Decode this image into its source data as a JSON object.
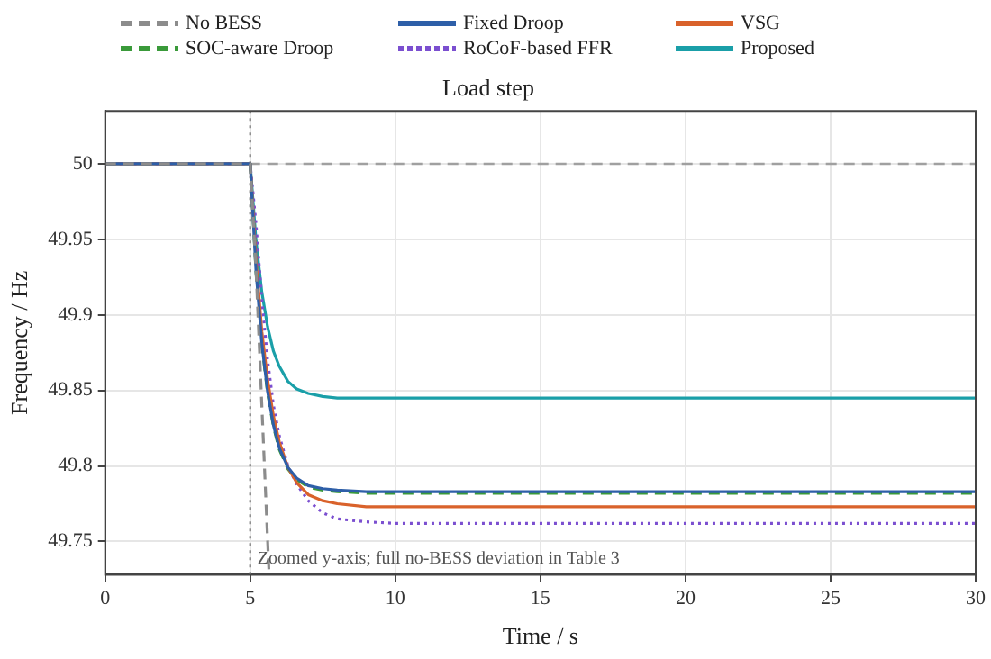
{
  "chart_data": {
    "type": "line",
    "title": "Load step",
    "xlabel": "Time / s",
    "ylabel": "Frequency / Hz",
    "xlim": [
      0,
      30
    ],
    "xticks": [
      0,
      5,
      10,
      15,
      20,
      25,
      30
    ],
    "ylim": [
      49.728,
      50.035
    ],
    "yticks": [
      49.75,
      49.8,
      49.85,
      49.9,
      49.95,
      50
    ],
    "grid": true,
    "legend": "top",
    "marker": "none",
    "ref_lines": [
      {
        "axis": "y",
        "value": 50,
        "color": "#a0a0a0",
        "line_style": "dashed"
      },
      {
        "axis": "x",
        "value": 5,
        "color": "#8c8c8c",
        "line_style": "dotted"
      }
    ],
    "annotations": [
      "Zoomed y-axis; full no-BESS deviation in Table 3"
    ],
    "series": [
      {
        "name": "No BESS",
        "color": "#8c8c8c",
        "line_style": "dashed",
        "x": [
          0,
          5,
          5.2,
          5.4,
          5.65
        ],
        "values": [
          50,
          50,
          49.93,
          49.84,
          49.728
        ]
      },
      {
        "name": "Fixed Droop",
        "color": "#2e5fa8",
        "line_style": "solid",
        "x": [
          0,
          5,
          5.2,
          5.4,
          5.6,
          5.8,
          6,
          6.3,
          6.6,
          7,
          7.5,
          8,
          9,
          10,
          15,
          20,
          30
        ],
        "values": [
          50,
          50,
          49.929,
          49.881,
          49.849,
          49.827,
          49.812,
          49.799,
          49.792,
          49.787,
          49.785,
          49.784,
          49.783,
          49.783,
          49.783,
          49.783,
          49.783
        ]
      },
      {
        "name": "VSG",
        "color": "#d9622b",
        "line_style": "solid",
        "x": [
          0,
          5,
          5.2,
          5.4,
          5.6,
          5.8,
          6,
          6.3,
          6.6,
          7,
          7.5,
          8,
          9,
          10,
          15,
          20,
          30
        ],
        "values": [
          50,
          50,
          49.936,
          49.889,
          49.857,
          49.833,
          49.816,
          49.799,
          49.789,
          49.781,
          49.777,
          49.775,
          49.773,
          49.773,
          49.773,
          49.773,
          49.773
        ]
      },
      {
        "name": "SOC-aware Droop",
        "color": "#3a9a3a",
        "line_style": "dashed",
        "x": [
          0,
          5,
          5.2,
          5.4,
          5.6,
          5.8,
          6,
          6.3,
          6.6,
          7,
          7.5,
          8,
          9,
          10,
          15,
          20,
          30
        ],
        "values": [
          50,
          50,
          49.928,
          49.88,
          49.848,
          49.826,
          49.811,
          49.798,
          49.791,
          49.786,
          49.784,
          49.783,
          49.782,
          49.782,
          49.782,
          49.782,
          49.782
        ]
      },
      {
        "name": "RoCoF-based FFR",
        "color": "#7b4fd0",
        "line_style": "dotted",
        "x": [
          0,
          5,
          5.2,
          5.4,
          5.6,
          5.8,
          6,
          6.3,
          6.6,
          7,
          7.5,
          8,
          9,
          10,
          15,
          20,
          30
        ],
        "values": [
          50,
          50,
          49.96,
          49.91,
          49.87,
          49.84,
          49.82,
          49.8,
          49.788,
          49.777,
          49.769,
          49.765,
          49.763,
          49.762,
          49.762,
          49.762,
          49.762
        ]
      },
      {
        "name": "Proposed",
        "color": "#1a9fa8",
        "line_style": "solid",
        "x": [
          0,
          5,
          5.2,
          5.4,
          5.6,
          5.8,
          6,
          6.3,
          6.6,
          7,
          7.5,
          8,
          9,
          10,
          15,
          20,
          30
        ],
        "values": [
          50,
          50,
          49.949,
          49.915,
          49.892,
          49.876,
          49.866,
          49.856,
          49.851,
          49.848,
          49.846,
          49.845,
          49.845,
          49.845,
          49.845,
          49.845,
          49.845
        ]
      }
    ]
  }
}
